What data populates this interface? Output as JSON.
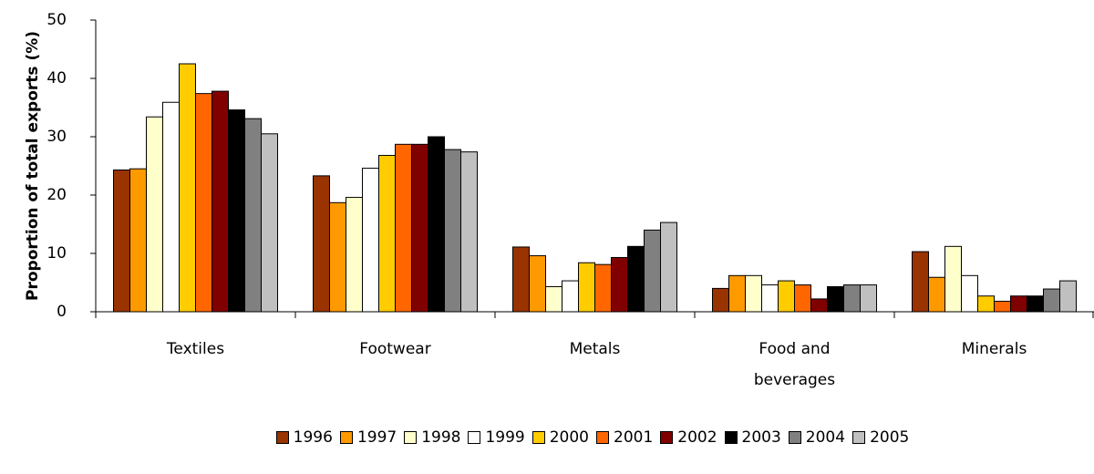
{
  "chart_data": {
    "type": "bar",
    "y_label": "Proportion of total exports (%)",
    "categories": [
      "Textiles",
      "Footwear",
      "Metals",
      "Food and beverages",
      "Minerals"
    ],
    "series": [
      {
        "name": "1996",
        "color": "#993300",
        "values": [
          24.3,
          23.3,
          11.1,
          4.0,
          10.3
        ]
      },
      {
        "name": "1997",
        "color": "#ff9900",
        "values": [
          24.5,
          18.7,
          9.6,
          6.2,
          5.9
        ]
      },
      {
        "name": "1998",
        "color": "#ffffcc",
        "values": [
          33.4,
          19.6,
          4.3,
          6.2,
          11.2
        ]
      },
      {
        "name": "1999",
        "color": "#ffffff",
        "values": [
          35.9,
          24.6,
          5.3,
          4.6,
          6.2
        ]
      },
      {
        "name": "2000",
        "color": "#ffcc00",
        "values": [
          42.5,
          26.8,
          8.4,
          5.3,
          2.7
        ]
      },
      {
        "name": "2001",
        "color": "#ff6600",
        "values": [
          37.4,
          28.7,
          8.1,
          4.6,
          1.8
        ]
      },
      {
        "name": "2002",
        "color": "#800000",
        "values": [
          37.8,
          28.7,
          9.3,
          2.2,
          2.7
        ]
      },
      {
        "name": "2003",
        "color": "#000000",
        "values": [
          34.6,
          30.0,
          11.2,
          4.3,
          2.7
        ]
      },
      {
        "name": "2004",
        "color": "#808080",
        "values": [
          33.1,
          27.8,
          14.0,
          4.6,
          3.9
        ]
      },
      {
        "name": "2005",
        "color": "#c0c0c0",
        "values": [
          30.5,
          27.4,
          15.3,
          4.6,
          5.3
        ]
      }
    ],
    "ylim": [
      0,
      50
    ],
    "yticks": [
      0,
      10,
      20,
      30,
      40,
      50
    ]
  }
}
